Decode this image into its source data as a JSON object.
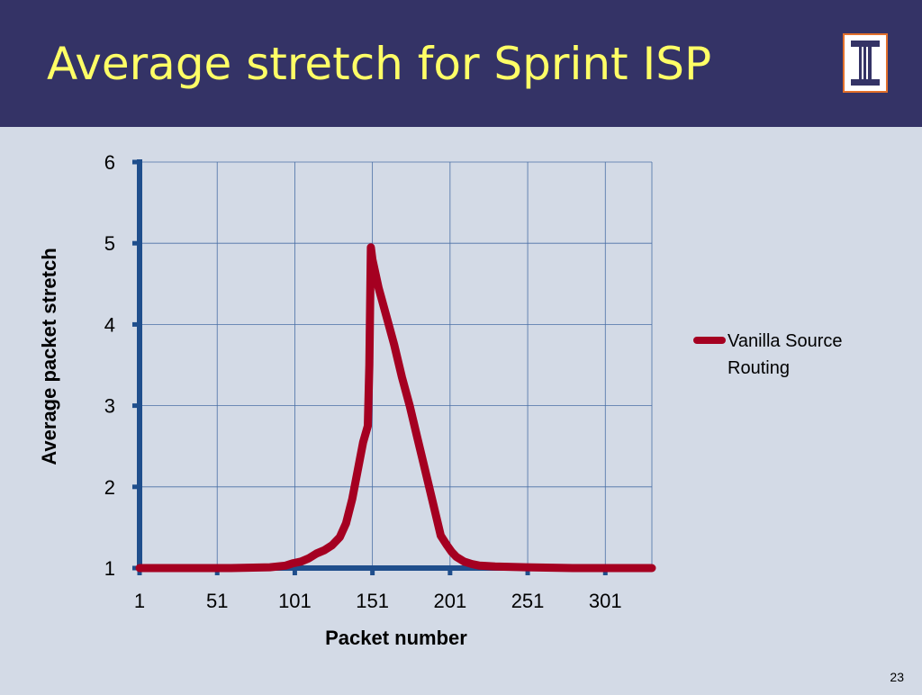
{
  "slide": {
    "title": "Average stretch for Sprint ISP",
    "number": "23",
    "logo_icon": "illinois-block-i-logo"
  },
  "colors": {
    "title_bar": "#343366",
    "title_text": "#ffff66",
    "background": "#d3dae6",
    "axis": "#1f4e8c",
    "series": "#a50021",
    "logo_frame": "#e2702b"
  },
  "chart_data": {
    "type": "line",
    "title": "",
    "xlabel": "Packet number",
    "ylabel": "Average packet stretch",
    "xlim": [
      1,
      331
    ],
    "ylim": [
      1,
      6
    ],
    "x_ticks": [
      1,
      51,
      101,
      151,
      201,
      251,
      301
    ],
    "y_ticks": [
      1,
      2,
      3,
      4,
      5,
      6
    ],
    "grid": true,
    "legend": "right",
    "series": [
      {
        "name": "Vanilla Source Routing",
        "x": [
          1,
          30,
          60,
          85,
          95,
          100,
          105,
          110,
          115,
          120,
          125,
          130,
          134,
          138,
          142,
          145,
          148,
          149,
          150,
          151,
          155,
          160,
          165,
          170,
          175,
          180,
          185,
          190,
          195,
          199,
          202,
          205,
          210,
          215,
          220,
          230,
          250,
          280,
          331
        ],
        "y": [
          1.0,
          1.0,
          1.0,
          1.01,
          1.03,
          1.06,
          1.08,
          1.12,
          1.18,
          1.22,
          1.28,
          1.38,
          1.55,
          1.85,
          2.25,
          2.55,
          2.75,
          3.5,
          4.95,
          4.8,
          4.45,
          4.1,
          3.75,
          3.35,
          3.0,
          2.6,
          2.2,
          1.8,
          1.4,
          1.28,
          1.2,
          1.14,
          1.08,
          1.05,
          1.03,
          1.02,
          1.01,
          1.0,
          1.0
        ]
      }
    ]
  }
}
